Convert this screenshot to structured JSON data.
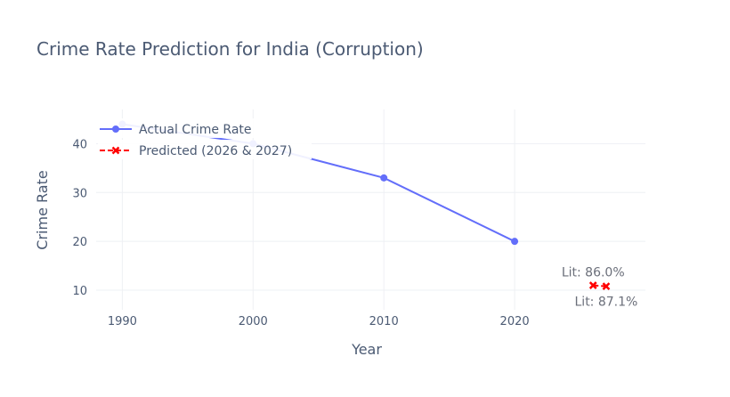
{
  "chart_data": {
    "type": "line",
    "title": "Crime Rate Prediction for India (Corruption)",
    "xlabel": "Year",
    "ylabel": "Crime Rate",
    "xlim": [
      1988,
      2030
    ],
    "ylim": [
      6,
      47
    ],
    "x_ticks": [
      1990,
      2000,
      2010,
      2020
    ],
    "y_ticks": [
      10,
      20,
      30,
      40
    ],
    "grid": true,
    "legend_position": "top-left",
    "series": [
      {
        "name": "Actual Crime Rate",
        "color": "#636efa",
        "marker": "circle",
        "x": [
          1990,
          2000,
          2010,
          2020
        ],
        "y": [
          44,
          40,
          33,
          20
        ]
      },
      {
        "name": "Predicted (2026 & 2027)",
        "color": "#ff0000",
        "marker": "x",
        "dash": "dash",
        "x": [
          2026,
          2027
        ],
        "y": [
          11,
          10.8
        ]
      }
    ],
    "annotations": [
      {
        "text": "Lit: 86.0%",
        "x": 2026,
        "y": 11,
        "position": "above"
      },
      {
        "text": "Lit: 87.1%",
        "x": 2027,
        "y": 10.8,
        "position": "below"
      }
    ]
  }
}
